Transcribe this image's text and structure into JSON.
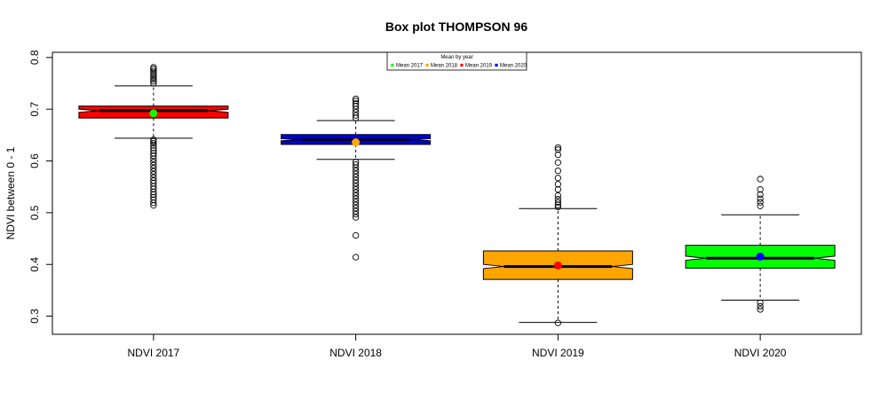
{
  "chart_data": {
    "type": "boxplot",
    "title": "Box plot THOMPSON 96",
    "xlabel": "",
    "ylabel": "NDVI between 0 - 1",
    "ylim": [
      0.265,
      0.81
    ],
    "yticks": [
      "0.3",
      "0.4",
      "0.5",
      "0.6",
      "0.7",
      "0.8"
    ],
    "notched": true,
    "categories": [
      "NDVI 2017",
      "NDVI 2018",
      "NDVI 2019",
      "NDVI 2020"
    ],
    "boxes": [
      {
        "label": "NDVI 2017",
        "color": "#ff0000",
        "mean_color": "#00ff00",
        "whisker_low": 0.644,
        "q1": 0.683,
        "median": 0.697,
        "q3": 0.706,
        "whisker_high": 0.745,
        "notch_low": 0.694,
        "notch_high": 0.7,
        "mean": 0.692,
        "outliers": [
          0.514,
          0.519,
          0.525,
          0.53,
          0.535,
          0.54,
          0.546,
          0.551,
          0.557,
          0.562,
          0.568,
          0.574,
          0.58,
          0.586,
          0.592,
          0.598,
          0.604,
          0.61,
          0.615,
          0.62,
          0.625,
          0.63,
          0.634,
          0.638,
          0.641,
          0.75,
          0.754,
          0.758,
          0.762,
          0.766,
          0.77,
          0.774,
          0.778,
          0.781
        ]
      },
      {
        "label": "NDVI 2018",
        "color": "#0000cd",
        "mean_color": "#ffa500",
        "whisker_low": 0.603,
        "q1": 0.632,
        "median": 0.641,
        "q3": 0.651,
        "whisker_high": 0.678,
        "notch_low": 0.639,
        "notch_high": 0.643,
        "mean": 0.636,
        "outliers": [
          0.414,
          0.456,
          0.491,
          0.497,
          0.503,
          0.509,
          0.515,
          0.521,
          0.527,
          0.533,
          0.539,
          0.545,
          0.551,
          0.557,
          0.563,
          0.569,
          0.575,
          0.581,
          0.587,
          0.593,
          0.598,
          0.683,
          0.688,
          0.694,
          0.7,
          0.706,
          0.711,
          0.716,
          0.72
        ]
      },
      {
        "label": "NDVI 2019",
        "color": "#ffa500",
        "mean_color": "#ff0000",
        "whisker_low": 0.288,
        "q1": 0.371,
        "median": 0.396,
        "q3": 0.426,
        "whisker_high": 0.508,
        "notch_low": 0.392,
        "notch_high": 0.4,
        "mean": 0.398,
        "outliers": [
          0.287,
          0.511,
          0.515,
          0.52,
          0.526,
          0.533,
          0.545,
          0.555,
          0.567,
          0.581,
          0.597,
          0.612,
          0.622,
          0.626
        ]
      },
      {
        "label": "NDVI 2020",
        "color": "#00ff00",
        "mean_color": "#0000ff",
        "whisker_low": 0.331,
        "q1": 0.393,
        "median": 0.412,
        "q3": 0.437,
        "whisker_high": 0.496,
        "notch_low": 0.408,
        "notch_high": 0.416,
        "mean": 0.415,
        "outliers": [
          0.313,
          0.319,
          0.326,
          0.513,
          0.52,
          0.527,
          0.535,
          0.545,
          0.565
        ]
      }
    ],
    "legend": {
      "title": "Mean by year",
      "position": "top-center",
      "entries": [
        {
          "label": "Mean 2017",
          "color": "#00ff00"
        },
        {
          "label": "Mean 2018",
          "color": "#ffa500"
        },
        {
          "label": "Mean 2019",
          "color": "#ff0000"
        },
        {
          "label": "Mean 2020",
          "color": "#0000ff"
        }
      ]
    },
    "grid": false
  }
}
